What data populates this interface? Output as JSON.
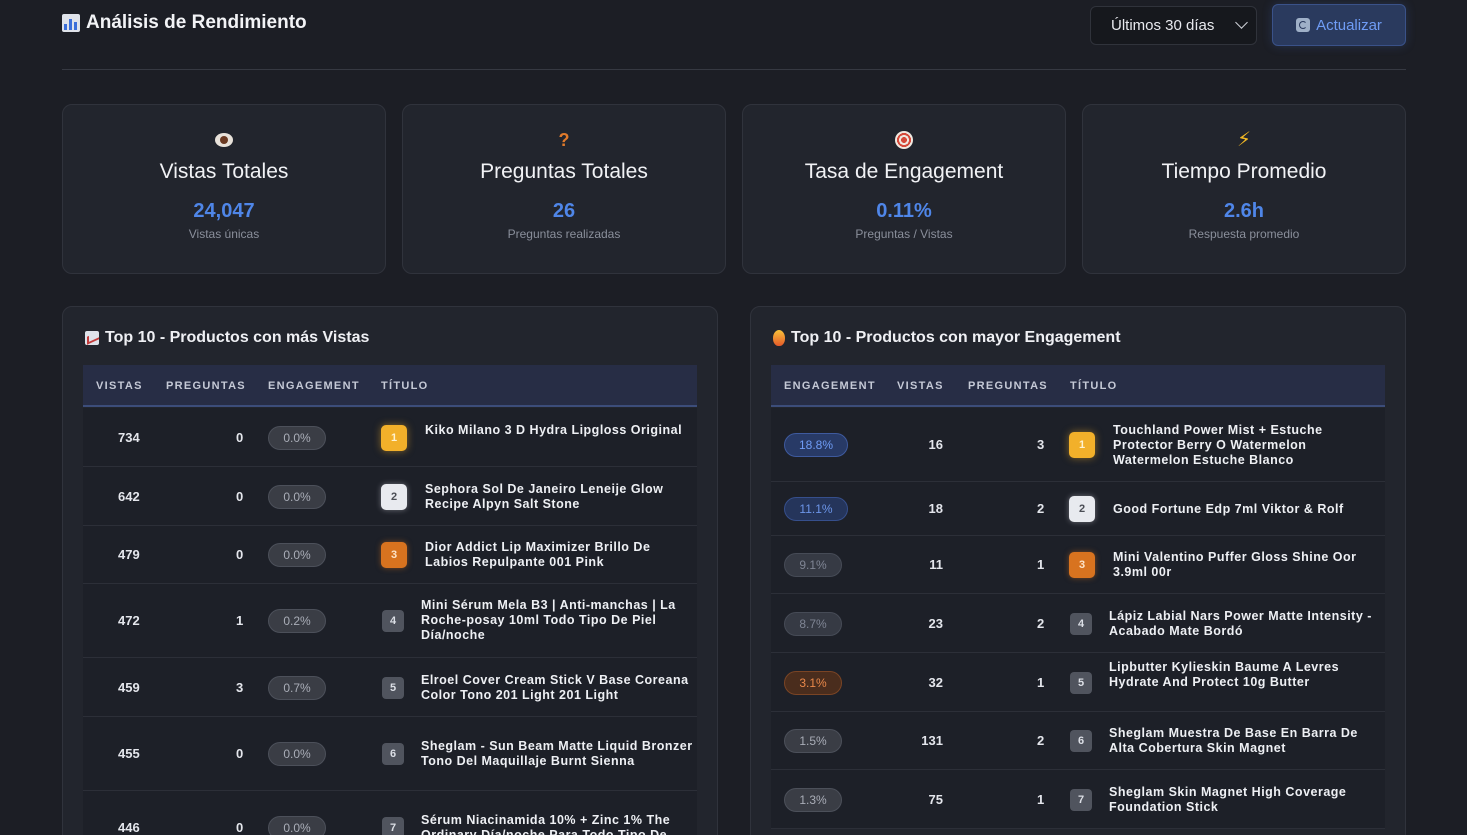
{
  "header": {
    "title": "Análisis de Rendimiento",
    "range_label": "Últimos 30 días",
    "refresh_label": "Actualizar"
  },
  "stats": [
    {
      "icon": "eye-icon",
      "label": "Vistas Totales",
      "value": "24,047",
      "sub": "Vistas únicas"
    },
    {
      "icon": "question-icon",
      "label": "Preguntas Totales",
      "value": "26",
      "sub": "Preguntas realizadas"
    },
    {
      "icon": "target-icon",
      "label": "Tasa de Engagement",
      "value": "0.11%",
      "sub": "Preguntas / Vistas"
    },
    {
      "icon": "lightning-icon",
      "label": "Tiempo Promedio",
      "value": "2.6h",
      "sub": "Respuesta promedio"
    }
  ],
  "views_panel": {
    "title": "Top 10 - Productos con más Vistas",
    "columns": [
      "VISTAS",
      "PREGUNTAS",
      "ENGAGEMENT",
      "TÍTULO"
    ],
    "rows": [
      {
        "vistas": "734",
        "preguntas": "0",
        "engagement": "0.0%",
        "rank": "1",
        "titulo": "Kiko Milano 3 D Hydra Lipgloss Original"
      },
      {
        "vistas": "642",
        "preguntas": "0",
        "engagement": "0.0%",
        "rank": "2",
        "titulo": "Sephora Sol De Janeiro Leneije Glow Recipe Alpyn Salt Stone"
      },
      {
        "vistas": "479",
        "preguntas": "0",
        "engagement": "0.0%",
        "rank": "3",
        "titulo": "Dior Addict Lip Maximizer Brillo De Labios Repulpante 001 Pink"
      },
      {
        "vistas": "472",
        "preguntas": "1",
        "engagement": "0.2%",
        "rank": "4",
        "titulo": "Mini Sérum Mela B3 | Anti-manchas | La Roche-posay 10ml Todo Tipo De Piel Día/noche"
      },
      {
        "vistas": "459",
        "preguntas": "3",
        "engagement": "0.7%",
        "rank": "5",
        "titulo": "Elroel Cover Cream Stick V Base Coreana Color Tono 201 Light 201 Light"
      },
      {
        "vistas": "455",
        "preguntas": "0",
        "engagement": "0.0%",
        "rank": "6",
        "titulo": "Sheglam - Sun Beam Matte Liquid Bronzer Tono Del Maquillaje Burnt Sienna"
      },
      {
        "vistas": "446",
        "preguntas": "0",
        "engagement": "0.0%",
        "rank": "7",
        "titulo": "Sérum Niacinamida 10% + Zinc 1% The Ordinary Día/noche Para Todo Tipo De"
      }
    ]
  },
  "engagement_panel": {
    "title": "Top 10 - Productos con mayor Engagement",
    "columns": [
      "ENGAGEMENT",
      "VISTAS",
      "PREGUNTAS",
      "TÍTULO"
    ],
    "rows": [
      {
        "engagement": "18.8%",
        "vistas": "16",
        "preguntas": "3",
        "rank": "1",
        "titulo": "Touchland Power Mist + Estuche Protector Berry O Watermelon Watermelon Estuche Blanco"
      },
      {
        "engagement": "11.1%",
        "vistas": "18",
        "preguntas": "2",
        "rank": "2",
        "titulo": "Good Fortune Edp 7ml Viktor & Rolf"
      },
      {
        "engagement": "9.1%",
        "vistas": "11",
        "preguntas": "1",
        "rank": "3",
        "titulo": "Mini Valentino Puffer Gloss Shine Oor 3.9ml 00r"
      },
      {
        "engagement": "8.7%",
        "vistas": "23",
        "preguntas": "2",
        "rank": "4",
        "titulo": "Lápiz Labial Nars Power Matte Intensity - Acabado Mate Bordó"
      },
      {
        "engagement": "3.1%",
        "vistas": "32",
        "preguntas": "1",
        "rank": "5",
        "titulo": "Lipbutter Kylieskin Baume A Levres Hydrate And Protect 10g Butter"
      },
      {
        "engagement": "1.5%",
        "vistas": "131",
        "preguntas": "2",
        "rank": "6",
        "titulo": "Sheglam Muestra De Base En Barra De Alta Cobertura Skin Magnet"
      },
      {
        "engagement": "1.3%",
        "vistas": "75",
        "preguntas": "1",
        "rank": "7",
        "titulo": "Sheglam Skin Magnet High Coverage Foundation Stick"
      }
    ]
  }
}
